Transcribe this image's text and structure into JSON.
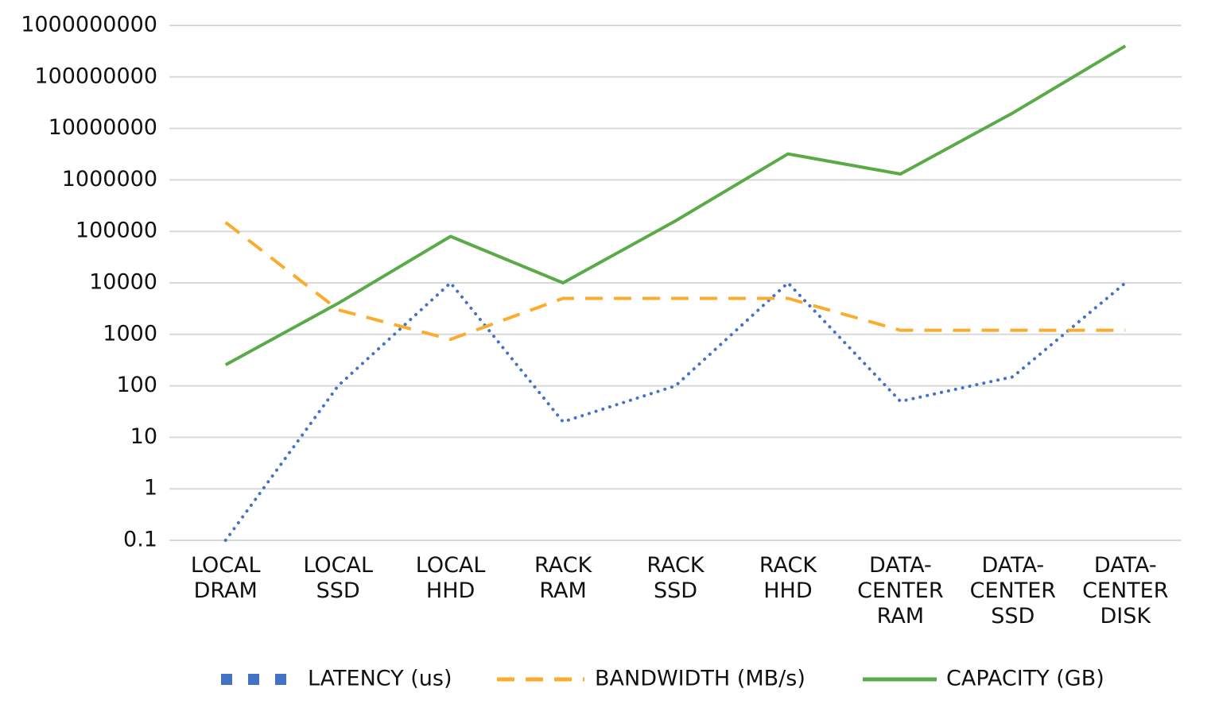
{
  "chart_data": {
    "type": "line",
    "log_scale": true,
    "grid": true,
    "legend": "bottom",
    "categories": [
      "LOCAL DRAM",
      "LOCAL SSD",
      "LOCAL HHD",
      "RACK RAM",
      "RACK SSD",
      "RACK HHD",
      "DATA-CENTER RAM",
      "DATA-CENTER SSD",
      "DATA-CENTER DISK"
    ],
    "series": [
      {
        "name": "LATENCY (us)",
        "color": "#4472c4",
        "style": "dotted",
        "values": [
          0.1,
          100,
          10000,
          20,
          100,
          10000,
          50,
          150,
          10000
        ]
      },
      {
        "name": "BANDWIDTH (MB/s)",
        "color": "#fbab2e",
        "style": "dashed",
        "values": [
          150000,
          3000,
          800,
          5000,
          5000,
          5000,
          1200,
          1200,
          1200
        ]
      },
      {
        "name": "CAPACITY (GB)",
        "color": "#5aab47",
        "style": "solid",
        "values": [
          256,
          4000,
          80000,
          10000,
          160000,
          3200000,
          1300000,
          20000000,
          400000000
        ]
      }
    ],
    "ylim": [
      0.1,
      1000000000
    ],
    "yticks": [
      0.1,
      1,
      10,
      100,
      1000,
      10000,
      100000,
      1000000,
      10000000,
      100000000,
      1000000000
    ]
  }
}
